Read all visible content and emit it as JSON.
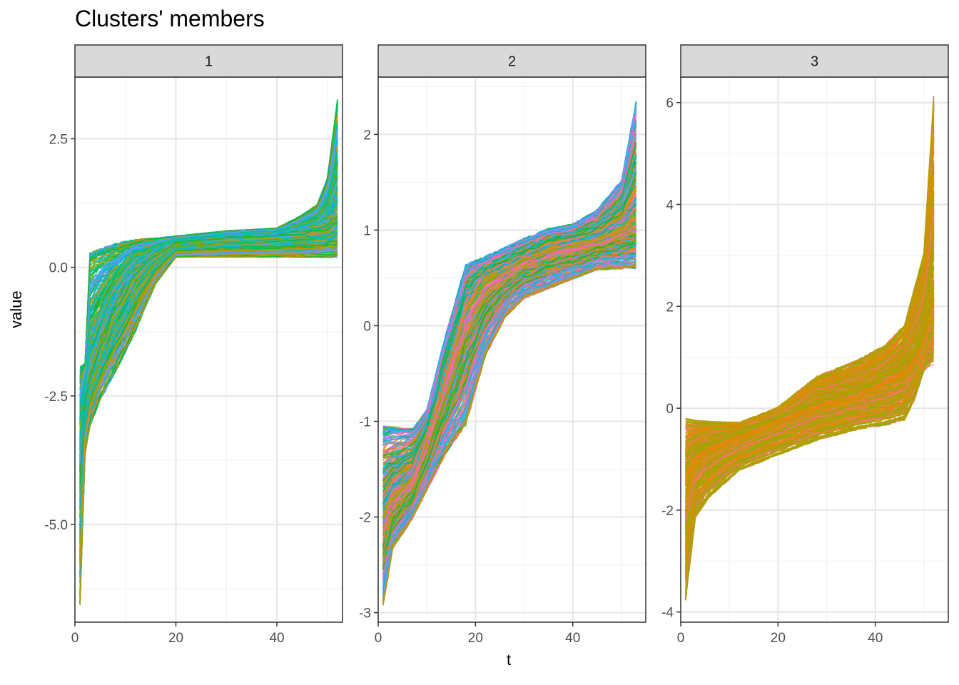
{
  "chart_data": {
    "type": "line",
    "title": "Clusters' members",
    "xlabel": "t",
    "ylabel": "value",
    "grid": true,
    "legend": "none",
    "facets": [
      {
        "strip_label": "1",
        "xlim": [
          0,
          53
        ],
        "ylim": [
          -6.9,
          3.7
        ],
        "x_ticks": [
          0,
          20,
          40
        ],
        "y_ticks": [
          -5.0,
          -2.5,
          0.0,
          2.5
        ],
        "y_tick_labels": [
          "-5.0",
          "-2.5",
          "0.0",
          "2.5"
        ],
        "line_count": 400,
        "colors": [
          "#00B9E3",
          "#619CFF",
          "#00C19F",
          "#D39200",
          "#93AA00",
          "#00BA38"
        ],
        "quantiles": {
          "x": [
            1,
            2,
            3,
            5,
            8,
            12,
            16,
            20,
            30,
            40,
            45,
            48,
            50,
            52
          ],
          "low": [
            -6.5,
            -3.6,
            -3.0,
            -2.5,
            -2.0,
            -1.2,
            -0.3,
            0.2,
            0.2,
            0.2,
            0.2,
            0.2,
            0.2,
            0.2
          ],
          "med": [
            -4.0,
            -2.5,
            -2.1,
            -1.5,
            -0.7,
            0.0,
            0.3,
            0.5,
            0.6,
            0.65,
            0.7,
            0.75,
            0.8,
            0.9
          ],
          "high": [
            -2.0,
            -1.9,
            0.2,
            0.3,
            0.4,
            0.5,
            0.55,
            0.6,
            0.7,
            0.75,
            1.0,
            1.2,
            1.7,
            3.2
          ]
        }
      },
      {
        "strip_label": "2",
        "xlim": [
          0,
          55
        ],
        "ylim": [
          -3.1,
          2.6
        ],
        "x_ticks": [
          0,
          20,
          40
        ],
        "y_ticks": [
          -3,
          -2,
          -1,
          0,
          1,
          2
        ],
        "y_tick_labels": [
          "-3",
          "-2",
          "-1",
          "0",
          "1",
          "2"
        ],
        "line_count": 400,
        "colors": [
          "#F8766D",
          "#FF61C3",
          "#619CFF",
          "#00B9E3",
          "#D39200",
          "#93AA00",
          "#00BA38"
        ],
        "quantiles": {
          "x": [
            1,
            3,
            7,
            10,
            14,
            18,
            22,
            26,
            30,
            35,
            40,
            45,
            50,
            53
          ],
          "low": [
            -2.9,
            -2.3,
            -2.0,
            -1.7,
            -1.3,
            -1.0,
            -0.3,
            0.1,
            0.3,
            0.4,
            0.5,
            0.6,
            0.6,
            0.6
          ],
          "med": [
            -2.0,
            -1.8,
            -1.6,
            -1.2,
            -0.5,
            0.2,
            0.5,
            0.6,
            0.7,
            0.8,
            0.85,
            0.9,
            1.0,
            1.1
          ],
          "high": [
            -1.1,
            -1.1,
            -1.1,
            -0.9,
            -0.1,
            0.6,
            0.7,
            0.8,
            0.9,
            1.0,
            1.05,
            1.2,
            1.5,
            2.3
          ]
        }
      },
      {
        "strip_label": "3",
        "xlim": [
          0,
          55
        ],
        "ylim": [
          -4.2,
          6.5
        ],
        "x_ticks": [
          0,
          20,
          40
        ],
        "y_ticks": [
          -4,
          -2,
          0,
          2,
          4,
          6
        ],
        "y_tick_labels": [
          "-4",
          "-2",
          "0",
          "2",
          "4",
          "6"
        ],
        "line_count": 400,
        "colors": [
          "#93AA00",
          "#A3A500",
          "#E58700",
          "#F8766D",
          "#C49A00"
        ],
        "quantiles": {
          "x": [
            1,
            3,
            6,
            12,
            20,
            28,
            36,
            42,
            46,
            48,
            50,
            52
          ],
          "low": [
            -3.7,
            -2.1,
            -1.7,
            -1.2,
            -0.9,
            -0.6,
            -0.4,
            -0.3,
            -0.2,
            0.2,
            0.8,
            1.0
          ],
          "med": [
            -1.2,
            -0.9,
            -0.7,
            -0.5,
            -0.2,
            0.1,
            0.3,
            0.6,
            0.8,
            1.0,
            1.5,
            2.2
          ],
          "high": [
            -0.3,
            -0.3,
            -0.3,
            -0.3,
            0.0,
            0.6,
            0.9,
            1.2,
            1.6,
            2.3,
            3.0,
            6.0
          ]
        }
      }
    ]
  }
}
